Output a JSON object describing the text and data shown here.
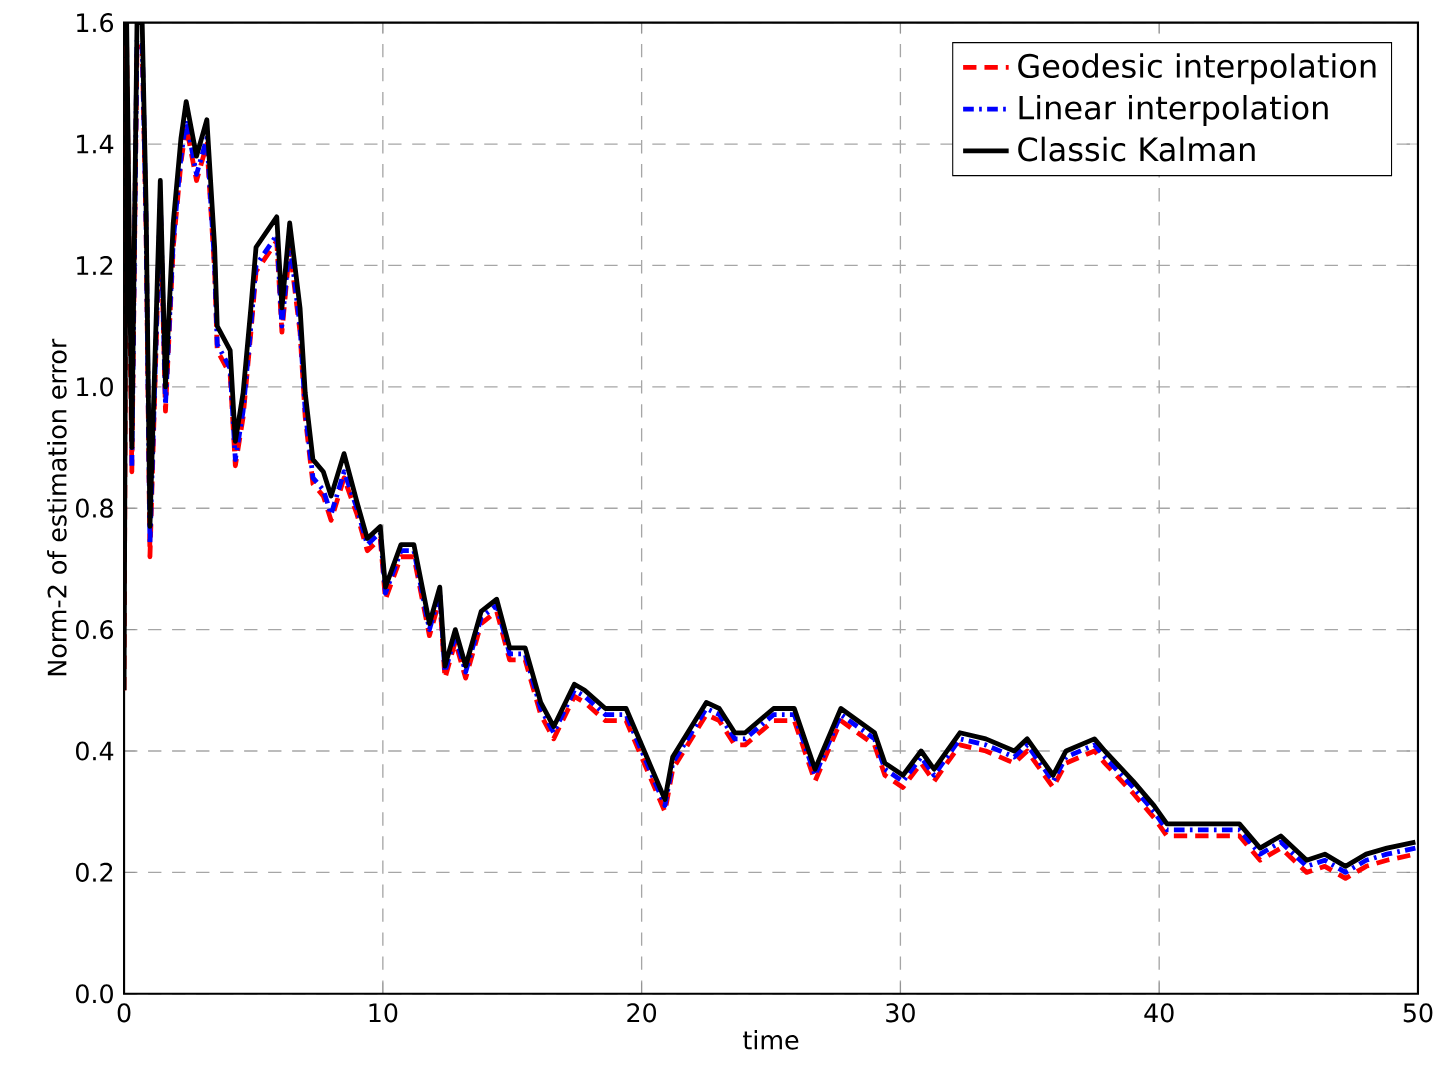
{
  "chart_data": {
    "type": "line",
    "xlabel": "time",
    "ylabel": "Norm-2 of estimation error",
    "x": [
      0,
      0.1,
      0.3,
      0.5,
      0.7,
      0.85,
      1.0,
      1.4,
      1.6,
      1.9,
      2.2,
      2.4,
      2.8,
      3.2,
      3.5,
      3.6,
      4.1,
      4.3,
      4.6,
      4.9,
      5.1,
      5.9,
      6.1,
      6.4,
      6.8,
      7.0,
      7.3,
      7.7,
      8.0,
      8.5,
      9.0,
      9.4,
      9.9,
      10.1,
      10.7,
      11.2,
      11.8,
      12.2,
      12.4,
      12.8,
      13.2,
      13.8,
      14.4,
      14.9,
      15.5,
      16.1,
      16.6,
      17.4,
      17.8,
      18.6,
      19.4,
      20.2,
      20.9,
      21.2,
      22.5,
      23.0,
      23.6,
      24.0,
      25.1,
      25.9,
      26.7,
      27.7,
      29.0,
      29.4,
      30.1,
      30.8,
      31.3,
      32.3,
      33.3,
      34.4,
      34.9,
      35.9,
      36.4,
      37.5,
      37.9,
      39.0,
      39.8,
      40.3,
      41.0,
      42.6,
      43.1,
      43.9,
      44.7,
      45.7,
      46.4,
      47.2,
      48.0,
      48.8,
      49.9
    ],
    "series": [
      {
        "name": "Geodesic interpolation",
        "color": "#ff0000",
        "line_style": "dashed",
        "values": [
          0.5,
          1.56,
          0.86,
          1.56,
          1.56,
          1.26,
          0.72,
          1.3,
          0.96,
          1.23,
          1.37,
          1.43,
          1.34,
          1.4,
          1.19,
          1.06,
          1.02,
          0.87,
          0.95,
          1.09,
          1.19,
          1.24,
          1.09,
          1.23,
          1.09,
          0.95,
          0.84,
          0.82,
          0.78,
          0.85,
          0.79,
          0.73,
          0.75,
          0.65,
          0.72,
          0.72,
          0.59,
          0.65,
          0.52,
          0.58,
          0.52,
          0.61,
          0.63,
          0.55,
          0.55,
          0.46,
          0.42,
          0.49,
          0.48,
          0.45,
          0.45,
          0.37,
          0.3,
          0.37,
          0.46,
          0.45,
          0.41,
          0.41,
          0.45,
          0.45,
          0.35,
          0.45,
          0.41,
          0.36,
          0.34,
          0.38,
          0.35,
          0.41,
          0.4,
          0.38,
          0.4,
          0.34,
          0.38,
          0.4,
          0.38,
          0.33,
          0.29,
          0.26,
          0.26,
          0.26,
          0.26,
          0.22,
          0.24,
          0.2,
          0.21,
          0.19,
          0.21,
          0.22,
          0.23
        ]
      },
      {
        "name": "Linear interpolation",
        "color": "#0000ff",
        "line_style": "dotted",
        "values": [
          null,
          null,
          0.87,
          1.57,
          1.57,
          1.27,
          0.74,
          1.31,
          0.97,
          1.24,
          1.38,
          1.44,
          1.35,
          1.41,
          1.2,
          1.07,
          1.03,
          0.88,
          0.96,
          1.1,
          1.2,
          1.25,
          1.1,
          1.24,
          1.1,
          0.96,
          0.85,
          0.83,
          0.79,
          0.86,
          0.8,
          0.74,
          0.76,
          0.66,
          0.73,
          0.73,
          0.6,
          0.66,
          0.53,
          0.59,
          0.53,
          0.62,
          0.64,
          0.56,
          0.56,
          0.47,
          0.43,
          0.5,
          0.49,
          0.46,
          0.46,
          0.38,
          0.31,
          0.38,
          0.47,
          0.46,
          0.42,
          0.42,
          0.46,
          0.46,
          0.36,
          0.46,
          0.42,
          0.37,
          0.35,
          0.39,
          0.36,
          0.42,
          0.41,
          0.39,
          0.41,
          0.35,
          0.39,
          0.41,
          0.39,
          0.34,
          0.3,
          0.27,
          0.27,
          0.27,
          0.27,
          0.23,
          0.25,
          0.21,
          0.22,
          0.2,
          0.22,
          0.23,
          0.24
        ]
      },
      {
        "name": "Classic Kalman",
        "color": "#000000",
        "line_style": "solid",
        "values": [
          0.5,
          1.6,
          0.9,
          1.6,
          1.6,
          1.3,
          0.77,
          1.34,
          1.0,
          1.27,
          1.41,
          1.47,
          1.38,
          1.44,
          1.23,
          1.1,
          1.06,
          0.91,
          0.99,
          1.13,
          1.23,
          1.28,
          1.13,
          1.27,
          1.13,
          0.99,
          0.88,
          0.86,
          0.82,
          0.89,
          0.81,
          0.75,
          0.77,
          0.67,
          0.74,
          0.74,
          0.61,
          0.67,
          0.54,
          0.6,
          0.54,
          0.63,
          0.65,
          0.57,
          0.57,
          0.48,
          0.44,
          0.51,
          0.5,
          0.47,
          0.47,
          0.39,
          0.32,
          0.39,
          0.48,
          0.47,
          0.43,
          0.43,
          0.47,
          0.47,
          0.37,
          0.47,
          0.43,
          0.38,
          0.36,
          0.4,
          0.37,
          0.43,
          0.42,
          0.4,
          0.42,
          0.36,
          0.4,
          0.42,
          0.4,
          0.35,
          0.31,
          0.28,
          0.28,
          0.28,
          0.28,
          0.24,
          0.26,
          0.22,
          0.23,
          0.21,
          0.23,
          0.24,
          0.25
        ]
      }
    ],
    "xlim": [
      0,
      50
    ],
    "ylim": [
      0,
      1.6
    ],
    "xticks": [
      0,
      10,
      20,
      30,
      40,
      50
    ],
    "yticks": [
      {
        "value": 0,
        "label": "0.0"
      },
      {
        "value": 0.2,
        "label": "0.2"
      },
      {
        "value": 0.4,
        "label": "0.4"
      },
      {
        "value": 0.6,
        "label": "0.6"
      },
      {
        "value": 0.8,
        "label": "0.8"
      },
      {
        "value": 1.0,
        "label": "1.0"
      },
      {
        "value": 1.2,
        "label": "1.2"
      },
      {
        "value": 1.4,
        "label": "1.4"
      },
      {
        "value": 1.6,
        "label": "1.6"
      }
    ],
    "grid": true,
    "legend": "top right"
  }
}
